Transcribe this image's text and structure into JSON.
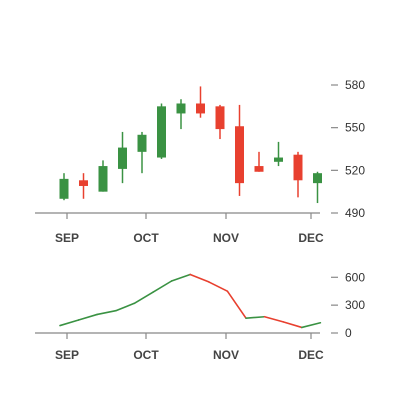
{
  "chart_data": [
    {
      "type": "candlestick",
      "title": "",
      "x_axis_labels": [
        "SEP",
        "OCT",
        "NOV",
        "DEC"
      ],
      "ylim": [
        490,
        590
      ],
      "y_ticks": [
        490,
        520,
        550,
        580
      ],
      "colors": {
        "up": "#3a9243",
        "down": "#e8402f"
      },
      "candles": [
        {
          "open": 500,
          "close": 514,
          "high": 518,
          "low": 499
        },
        {
          "open": 513,
          "close": 509,
          "high": 518,
          "low": 500
        },
        {
          "open": 505,
          "close": 523,
          "high": 527,
          "low": 505
        },
        {
          "open": 521,
          "close": 536,
          "high": 547,
          "low": 511
        },
        {
          "open": 533,
          "close": 545,
          "high": 547,
          "low": 518
        },
        {
          "open": 529,
          "close": 565,
          "high": 567,
          "low": 528
        },
        {
          "open": 560,
          "close": 567,
          "high": 570,
          "low": 549
        },
        {
          "open": 567,
          "close": 560,
          "high": 579,
          "low": 557
        },
        {
          "open": 565,
          "close": 549,
          "high": 566,
          "low": 542
        },
        {
          "open": 551,
          "close": 511,
          "high": 566,
          "low": 502
        },
        {
          "open": 523,
          "close": 519,
          "high": 533,
          "low": 519
        },
        {
          "open": 526,
          "close": 529,
          "high": 540,
          "low": 523
        },
        {
          "open": 531,
          "close": 513,
          "high": 533,
          "low": 501
        },
        {
          "open": 511,
          "close": 518,
          "high": 519,
          "low": 497
        }
      ]
    },
    {
      "type": "line",
      "title": "",
      "x_axis_labels": [
        "SEP",
        "OCT",
        "NOV",
        "DEC"
      ],
      "ylim": [
        0,
        700
      ],
      "y_ticks": [
        0,
        300,
        600
      ],
      "colors": {
        "up": "#3a9243",
        "down": "#e8402f"
      },
      "values": [
        80,
        140,
        200,
        240,
        320,
        440,
        560,
        630,
        550,
        450,
        160,
        175,
        120,
        60,
        110
      ]
    }
  ]
}
